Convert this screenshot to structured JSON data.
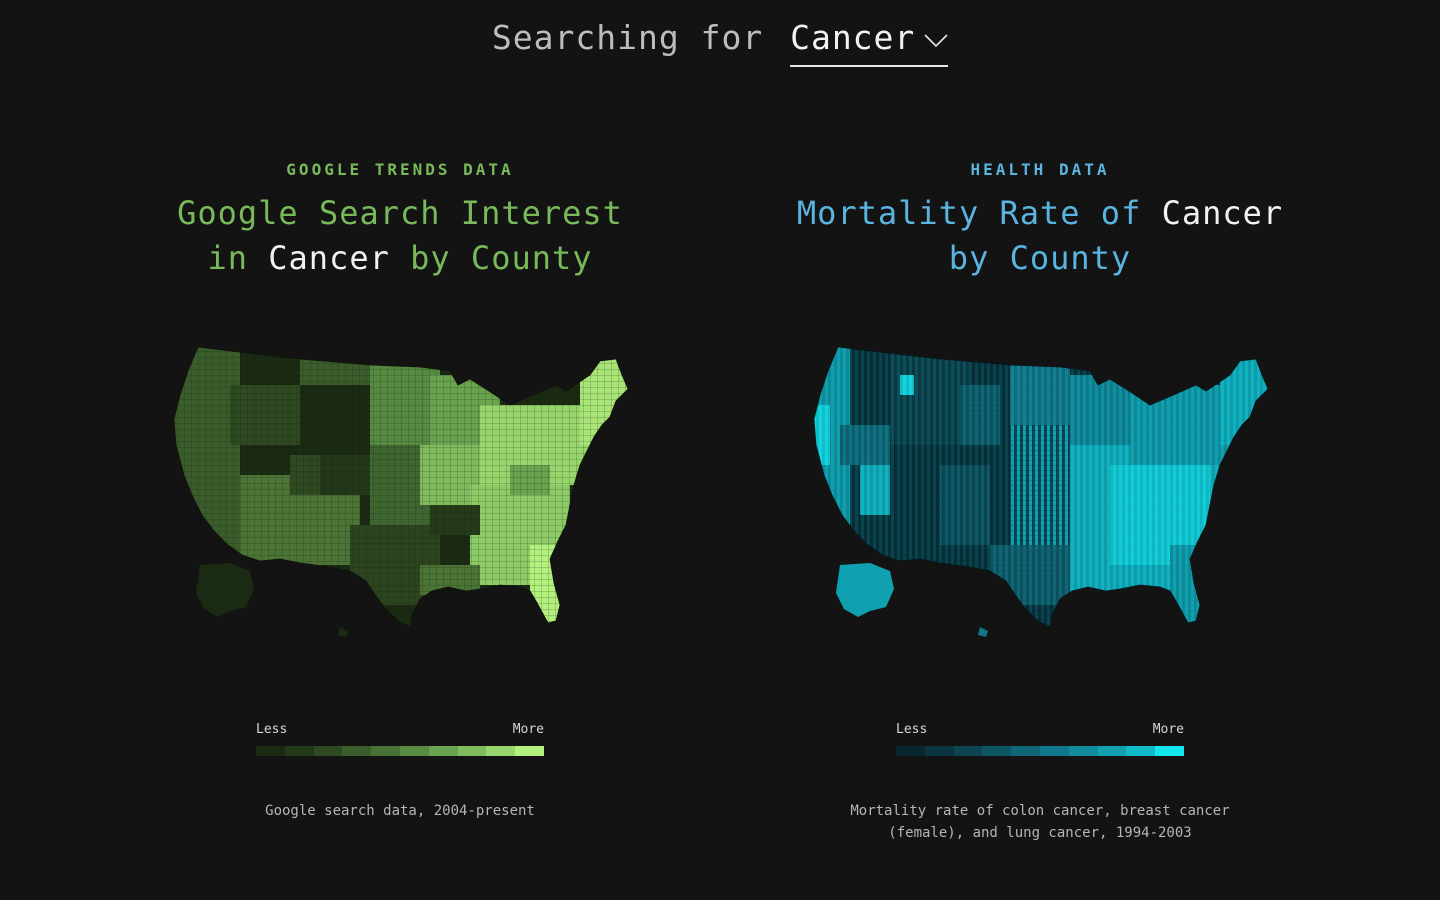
{
  "header": {
    "prefix": "Searching for",
    "selected_term": "Cancer"
  },
  "left_panel": {
    "eyebrow": "GOOGLE TRENDS DATA",
    "title_part1": "Google Search Interest",
    "title_part2": "in",
    "title_highlight": "Cancer",
    "title_part3": "by County",
    "legend_less": "Less",
    "legend_more": "More",
    "legend_colors": [
      "#1b2a12",
      "#24391a",
      "#2f4a22",
      "#3a5d2b",
      "#477236",
      "#578a42",
      "#6aa34f",
      "#80bb5d",
      "#97d66c",
      "#b3f07e"
    ],
    "source": "Google search data, 2004-present",
    "accent_color": "#78ba5a"
  },
  "right_panel": {
    "eyebrow": "HEALTH DATA",
    "title_part1": "Mortality Rate of",
    "title_highlight": "Cancer",
    "title_part2": "by County",
    "legend_less": "Less",
    "legend_more": "More",
    "legend_colors": [
      "#07262e",
      "#0a3540",
      "#0c4451",
      "#0e5563",
      "#0f6676",
      "#10788a",
      "#108c9d",
      "#10a1b1",
      "#10b9c7",
      "#14e6f0"
    ],
    "source": "Mortality rate of colon cancer, breast cancer (female), and lung cancer, 1994-2003",
    "accent_color": "#5ab4e0"
  }
}
